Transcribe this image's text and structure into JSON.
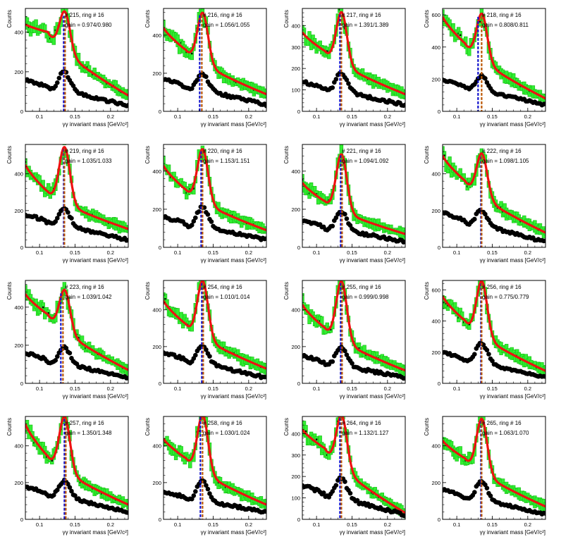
{
  "layout": {
    "rows": 4,
    "cols": 4
  },
  "chart_data": [
    {
      "type": "scatter",
      "title": "# 215, ring # 16",
      "annotation": "gain = 0.974/0.980",
      "xlabel": "γγ invariant mass [GeV/c²]",
      "ylabel": "Counts",
      "xlim": [
        0.08,
        0.225
      ],
      "ylim": [
        0,
        520
      ],
      "yticks": [
        0,
        200,
        400
      ],
      "xticks": [
        "0.1",
        "0.15",
        "0.2"
      ],
      "peak_signal": 460,
      "base_signal": 440,
      "sideband_left": 400,
      "tail_signal": 80,
      "peak_bg": 200,
      "base_bg": 160,
      "tail_bg": 30,
      "dashed_x": [
        0.134,
        0.136
      ]
    },
    {
      "type": "scatter",
      "title": "# 216, ring # 16",
      "annotation": "gain = 1.056/1.055",
      "xlabel": "γγ invariant mass [GeV/c²]",
      "ylabel": "Counts",
      "xlim": [
        0.08,
        0.225
      ],
      "ylim": [
        0,
        540
      ],
      "yticks": [
        0,
        200,
        400
      ],
      "xticks": [
        "0.1",
        "0.15",
        "0.2"
      ],
      "peak_signal": 480,
      "base_signal": 440,
      "sideband_left": 320,
      "tail_signal": 90,
      "peak_bg": 200,
      "base_bg": 170,
      "tail_bg": 35,
      "dashed_x": [
        0.131,
        0.134
      ]
    },
    {
      "type": "scatter",
      "title": "# 217, ring # 16",
      "annotation": "gain = 1.391/1.389",
      "xlabel": "γγ invariant mass [GeV/c²]",
      "ylabel": "Counts",
      "xlim": [
        0.08,
        0.225
      ],
      "ylim": [
        0,
        480
      ],
      "yticks": [
        0,
        100,
        200,
        300,
        400
      ],
      "xticks": [
        "0.1",
        "0.15",
        "0.2"
      ],
      "peak_signal": 430,
      "base_signal": 370,
      "sideband_left": 280,
      "tail_signal": 80,
      "peak_bg": 180,
      "base_bg": 140,
      "tail_bg": 30,
      "dashed_x": [
        0.133,
        0.135
      ]
    },
    {
      "type": "scatter",
      "title": "# 218, ring # 16",
      "annotation": "gain = 0.808/0.811",
      "xlabel": "γγ invariant mass [GeV/c²]",
      "ylabel": "Counts",
      "xlim": [
        0.08,
        0.225
      ],
      "ylim": [
        0,
        640
      ],
      "yticks": [
        0,
        200,
        400,
        600
      ],
      "xticks": [
        "0.1",
        "0.15",
        "0.2"
      ],
      "peak_signal": 560,
      "base_signal": 590,
      "sideband_left": 420,
      "tail_signal": 80,
      "peak_bg": 220,
      "base_bg": 200,
      "tail_bg": 40,
      "dashed_x": [
        0.13,
        0.135
      ]
    },
    {
      "type": "scatter",
      "title": "# 219, ring # 16",
      "annotation": "gain = 1.035/1.033",
      "xlabel": "γγ invariant mass [GeV/c²]",
      "ylabel": "Counts",
      "xlim": [
        0.08,
        0.225
      ],
      "ylim": [
        0,
        560
      ],
      "yticks": [
        0,
        200,
        400
      ],
      "xticks": [
        "0.1",
        "0.15",
        "0.2"
      ],
      "peak_signal": 510,
      "base_signal": 450,
      "sideband_left": 300,
      "tail_signal": 100,
      "peak_bg": 210,
      "base_bg": 180,
      "tail_bg": 40,
      "dashed_x": [
        0.134,
        0.135
      ]
    },
    {
      "type": "scatter",
      "title": "# 220, ring # 16",
      "annotation": "gain = 1.153/1.151",
      "xlabel": "γγ invariant mass [GeV/c²]",
      "ylabel": "Counts",
      "xlim": [
        0.08,
        0.225
      ],
      "ylim": [
        0,
        540
      ],
      "yticks": [
        0,
        200,
        400
      ],
      "xticks": [
        "0.1",
        "0.15",
        "0.2"
      ],
      "peak_signal": 480,
      "base_signal": 430,
      "sideband_left": 300,
      "tail_signal": 90,
      "peak_bg": 210,
      "base_bg": 160,
      "tail_bg": 40,
      "dashed_x": [
        0.133,
        0.135
      ]
    },
    {
      "type": "scatter",
      "title": "# 221, ring # 16",
      "annotation": "gain = 1.094/1.092",
      "xlabel": "γγ invariant mass [GeV/c²]",
      "ylabel": "Counts",
      "xlim": [
        0.08,
        0.225
      ],
      "ylim": [
        0,
        540
      ],
      "yticks": [
        0,
        200,
        400
      ],
      "xticks": [
        "0.1",
        "0.15",
        "0.2"
      ],
      "peak_signal": 460,
      "base_signal": 340,
      "sideband_left": 240,
      "tail_signal": 70,
      "peak_bg": 190,
      "base_bg": 140,
      "tail_bg": 30,
      "dashed_x": [
        0.134,
        0.136
      ]
    },
    {
      "type": "scatter",
      "title": "# 222, ring # 16",
      "annotation": "gain = 1.098/1.105",
      "xlabel": "γγ invariant mass [GeV/c²]",
      "ylabel": "Counts",
      "xlim": [
        0.08,
        0.225
      ],
      "ylim": [
        0,
        560
      ],
      "yticks": [
        0,
        200,
        400
      ],
      "xticks": [
        "0.1",
        "0.15",
        "0.2"
      ],
      "peak_signal": 470,
      "base_signal": 500,
      "sideband_left": 360,
      "tail_signal": 80,
      "peak_bg": 200,
      "base_bg": 190,
      "tail_bg": 30,
      "dashed_x": [
        0.134,
        0.135
      ]
    },
    {
      "type": "scatter",
      "title": "# 223, ring # 16",
      "annotation": "gain = 1.039/1.042",
      "xlabel": "γγ invariant mass [GeV/c²]",
      "ylabel": "Counts",
      "xlim": [
        0.08,
        0.225
      ],
      "ylim": [
        0,
        540
      ],
      "yticks": [
        0,
        200,
        400
      ],
      "xticks": [
        "0.1",
        "0.15",
        "0.2"
      ],
      "peak_signal": 450,
      "base_signal": 470,
      "sideband_left": 360,
      "tail_signal": 70,
      "peak_bg": 190,
      "base_bg": 160,
      "tail_bg": 30,
      "dashed_x": [
        0.13,
        0.133
      ]
    },
    {
      "type": "scatter",
      "title": "# 254, ring # 16",
      "annotation": "gain = 1.010/1.014",
      "xlabel": "γγ invariant mass [GeV/c²]",
      "ylabel": "Counts",
      "xlim": [
        0.08,
        0.225
      ],
      "ylim": [
        0,
        560
      ],
      "yticks": [
        0,
        200,
        400
      ],
      "xticks": [
        "0.1",
        "0.15",
        "0.2"
      ],
      "peak_signal": 520,
      "base_signal": 450,
      "sideband_left": 320,
      "tail_signal": 80,
      "peak_bg": 200,
      "base_bg": 170,
      "tail_bg": 30,
      "dashed_x": [
        0.134,
        0.136
      ]
    },
    {
      "type": "scatter",
      "title": "# 255, ring # 16",
      "annotation": "gain = 0.999/0.998",
      "xlabel": "γγ invariant mass [GeV/c²]",
      "ylabel": "Counts",
      "xlim": [
        0.08,
        0.225
      ],
      "ylim": [
        0,
        560
      ],
      "yticks": [
        0,
        200,
        400
      ],
      "xticks": [
        "0.1",
        "0.15",
        "0.2"
      ],
      "peak_signal": 520,
      "base_signal": 430,
      "sideband_left": 300,
      "tail_signal": 70,
      "peak_bg": 200,
      "base_bg": 150,
      "tail_bg": 30,
      "dashed_x": [
        0.134,
        0.136
      ]
    },
    {
      "type": "scatter",
      "title": "# 256, ring # 16",
      "annotation": "gain = 0.775/0.779",
      "xlabel": "γγ invariant mass [GeV/c²]",
      "ylabel": "Counts",
      "xlim": [
        0.08,
        0.225
      ],
      "ylim": [
        0,
        660
      ],
      "yticks": [
        0,
        200,
        400,
        600
      ],
      "xticks": [
        "0.1",
        "0.15",
        "0.2"
      ],
      "peak_signal": 610,
      "base_signal": 560,
      "sideband_left": 400,
      "tail_signal": 80,
      "peak_bg": 260,
      "base_bg": 200,
      "tail_bg": 40,
      "dashed_x": [
        0.134,
        0.135
      ]
    },
    {
      "type": "scatter",
      "title": "# 257, ring # 16",
      "annotation": "gain = 1.350/1.348",
      "xlabel": "γγ invariant mass [GeV/c²]",
      "ylabel": "Counts",
      "xlim": [
        0.08,
        0.225
      ],
      "ylim": [
        0,
        560
      ],
      "yticks": [
        0,
        200,
        400
      ],
      "xticks": [
        "0.1",
        "0.15",
        "0.2"
      ],
      "peak_signal": 520,
      "base_signal": 520,
      "sideband_left": 340,
      "tail_signal": 80,
      "peak_bg": 210,
      "base_bg": 180,
      "tail_bg": 40,
      "dashed_x": [
        0.135,
        0.137
      ]
    },
    {
      "type": "scatter",
      "title": "# 258, ring # 16",
      "annotation": "gain = 1.030/1.024",
      "xlabel": "γγ invariant mass [GeV/c²]",
      "ylabel": "Counts",
      "xlim": [
        0.08,
        0.225
      ],
      "ylim": [
        0,
        560
      ],
      "yticks": [
        0,
        200,
        400
      ],
      "xticks": [
        "0.1",
        "0.15",
        "0.2"
      ],
      "peak_signal": 530,
      "base_signal": 440,
      "sideband_left": 330,
      "tail_signal": 80,
      "peak_bg": 210,
      "base_bg": 150,
      "tail_bg": 40,
      "dashed_x": [
        0.132,
        0.135
      ]
    },
    {
      "type": "scatter",
      "title": "# 264, ring # 16",
      "annotation": "gain = 1.132/1.127",
      "xlabel": "γγ invariant mass [GeV/c²]",
      "ylabel": "Counts",
      "xlim": [
        0.08,
        0.225
      ],
      "ylim": [
        0,
        480
      ],
      "yticks": [
        0,
        100,
        200,
        300,
        400
      ],
      "xticks": [
        "0.1",
        "0.15",
        "0.2"
      ],
      "peak_signal": 450,
      "base_signal": 420,
      "sideband_left": 330,
      "tail_signal": 30,
      "peak_bg": 190,
      "base_bg": 160,
      "tail_bg": 20,
      "dashed_x": [
        0.133,
        0.135
      ]
    },
    {
      "type": "scatter",
      "title": "# 265, ring # 16",
      "annotation": "gain = 1.063/1.070",
      "xlabel": "γγ invariant mass [GeV/c²]",
      "ylabel": "Counts",
      "xlim": [
        0.08,
        0.225
      ],
      "ylim": [
        0,
        560
      ],
      "yticks": [
        0,
        200,
        400
      ],
      "xticks": [
        "0.1",
        "0.15",
        "0.2"
      ],
      "peak_signal": 510,
      "base_signal": 430,
      "sideband_left": 330,
      "tail_signal": 70,
      "peak_bg": 210,
      "base_bg": 160,
      "tail_bg": 30,
      "dashed_x": [
        0.134,
        0.135
      ]
    }
  ]
}
